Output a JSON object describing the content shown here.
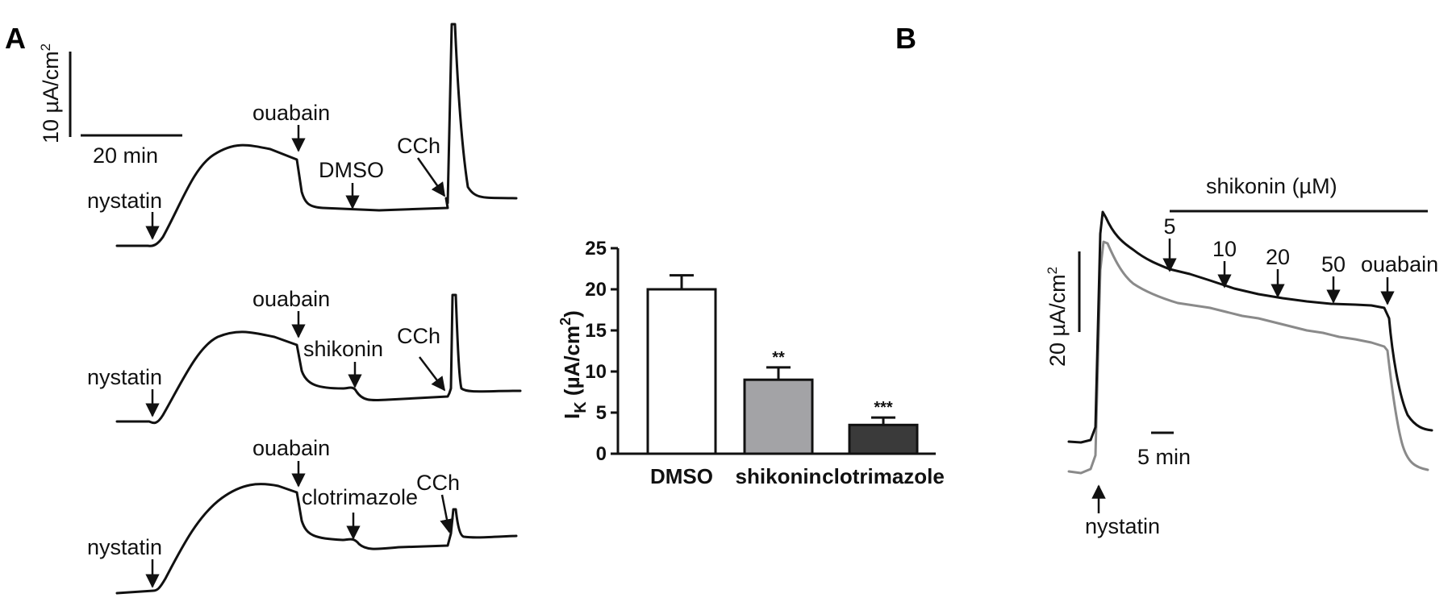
{
  "panels": {
    "a": "A",
    "b": "B"
  },
  "panel_a": {
    "scale_y": "10 µA/cm",
    "scale_y_sup": "2",
    "scale_x": "20 min",
    "traces": [
      {
        "nystatin": "nystatin",
        "ouabain": "ouabain",
        "drug": "DMSO",
        "cch": "CCh"
      },
      {
        "nystatin": "nystatin",
        "ouabain": "ouabain",
        "drug": "shikonin",
        "cch": "CCh"
      },
      {
        "nystatin": "nystatin",
        "ouabain": "ouabain",
        "drug": "clotrimazole",
        "cch": "CCh"
      }
    ]
  },
  "panel_b": {
    "bar_label": "shikonin (µM)",
    "doses": [
      "5",
      "10",
      "20",
      "50"
    ],
    "ouabain": "ouabain",
    "nystatin": "nystatin",
    "scale_y": "20 µA/cm",
    "scale_y_sup": "2",
    "scale_x": "5 min",
    "colors": {
      "trace1": "#111111",
      "trace2": "#8a8a8a"
    }
  },
  "chart_data": {
    "type": "bar",
    "categories": [
      "DMSO",
      "shikonin",
      "clotrimazole"
    ],
    "values": [
      20.0,
      9.0,
      3.5
    ],
    "errors": [
      1.7,
      1.5,
      0.9
    ],
    "significance": [
      "",
      "**",
      "***"
    ],
    "colors": [
      "#ffffff",
      "#a3a3a6",
      "#3a3a3a"
    ],
    "ylabel_main": "I",
    "ylabel_sub": "K",
    "ylabel_unit": " (µA/cm",
    "ylabel_sup": "2",
    "ylabel_close": ")",
    "ylim": [
      0,
      25
    ],
    "yticks": [
      "0",
      "5",
      "10",
      "15",
      "20",
      "25"
    ]
  }
}
